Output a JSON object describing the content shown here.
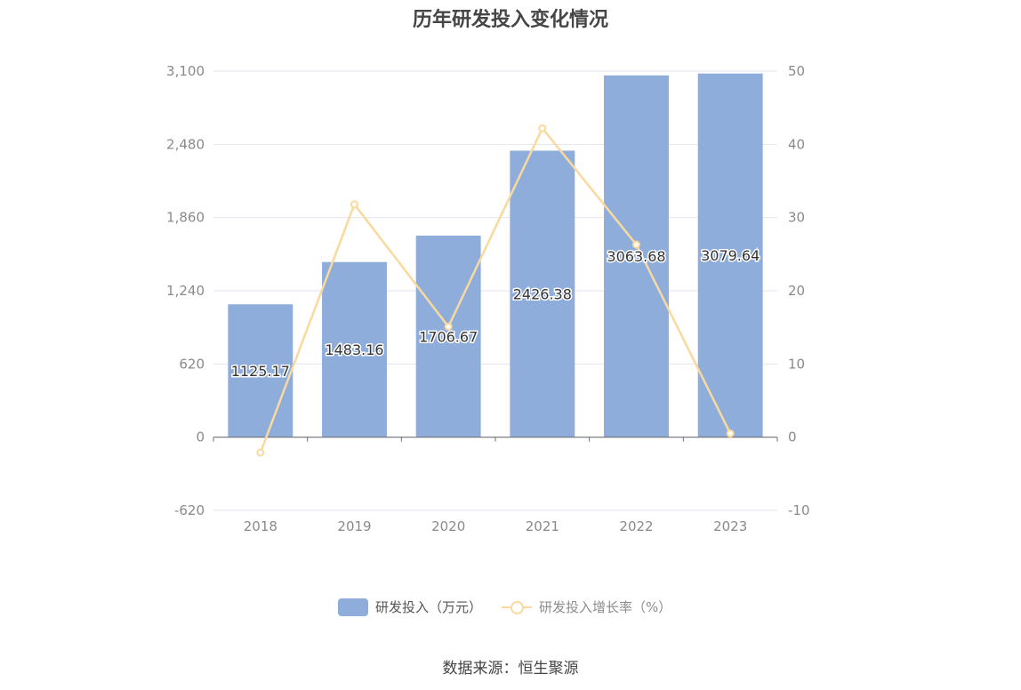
{
  "title": "历年研发投入变化情况",
  "source": "数据来源：恒生聚源",
  "legend": {
    "bar_label": "研发投入（万元）",
    "line_label": "研发投入增长率（%）"
  },
  "colors": {
    "bar": "#8eaddb",
    "line": "#f9d99d",
    "grid": "#e3e6f0",
    "axis": "#6e7079",
    "tick_text": "#8a8a8a"
  },
  "chart_data": {
    "type": "bar",
    "categories": [
      "2018",
      "2019",
      "2020",
      "2021",
      "2022",
      "2023"
    ],
    "series": [
      {
        "name": "研发投入（万元）",
        "type": "bar",
        "axis": "left",
        "values": [
          1125.17,
          1483.16,
          1706.67,
          2426.38,
          3063.68,
          3079.64
        ],
        "labels": [
          "1125.17",
          "1483.16",
          "1706.67",
          "2426.38",
          "3063.68",
          "3079.64"
        ]
      },
      {
        "name": "研发投入增长率（%）",
        "type": "line",
        "axis": "right",
        "values": [
          -2.1,
          31.8,
          15.1,
          42.2,
          26.3,
          0.5
        ]
      }
    ],
    "y_left": {
      "min": -620,
      "max": 3100,
      "ticks": [
        -620,
        0,
        620,
        1240,
        1860,
        2480,
        3100
      ],
      "tick_labels": [
        "-620",
        "0",
        "620",
        "1,240",
        "1,860",
        "2,480",
        "3,100"
      ]
    },
    "y_right": {
      "min": -10,
      "max": 50,
      "ticks": [
        -10,
        0,
        10,
        20,
        30,
        40,
        50
      ],
      "tick_labels": [
        "-10",
        "0",
        "10",
        "20",
        "30",
        "40",
        "50"
      ]
    },
    "grid": true,
    "legend_position": "bottom"
  }
}
